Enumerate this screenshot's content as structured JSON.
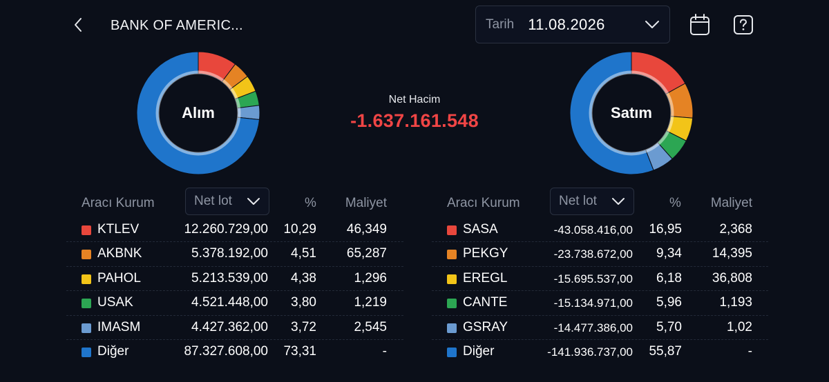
{
  "header": {
    "title": "BANK OF AMERIC...",
    "date_label": "Tarih",
    "date_value": "11.08.2026"
  },
  "colors": {
    "background": "#0b0f19",
    "negative": "#f04545",
    "series": [
      "#e8473c",
      "#e58324",
      "#f2c418",
      "#2ca653",
      "#6b9bd1",
      "#1f75cb"
    ]
  },
  "summary": {
    "buy_label": "Alım",
    "sell_label": "Satım",
    "net_label": "Net Hacim",
    "net_value": "-1.637.161.548"
  },
  "buy_table": {
    "col_broker": "Aracı Kurum",
    "col_select": "Net lot",
    "col_pct": "%",
    "col_cost": "Maliyet",
    "rows": [
      {
        "name": "KTLEV",
        "lot": "12.260.729,00",
        "pct": "10,29",
        "cost": "46,349",
        "color": "#e8473c",
        "share": 10.29
      },
      {
        "name": "AKBNK",
        "lot": "5.378.192,00",
        "pct": "4,51",
        "cost": "65,287",
        "color": "#e58324",
        "share": 4.51
      },
      {
        "name": "PAHOL",
        "lot": "5.213.539,00",
        "pct": "4,38",
        "cost": "1,296",
        "color": "#f2c418",
        "share": 4.38
      },
      {
        "name": "USAK",
        "lot": "4.521.448,00",
        "pct": "3,80",
        "cost": "1,219",
        "color": "#2ca653",
        "share": 3.8
      },
      {
        "name": "IMASM",
        "lot": "4.427.362,00",
        "pct": "3,72",
        "cost": "2,545",
        "color": "#6b9bd1",
        "share": 3.72
      },
      {
        "name": "Diğer",
        "lot": "87.327.608,00",
        "pct": "73,31",
        "cost": "-",
        "color": "#1f75cb",
        "share": 73.31
      }
    ]
  },
  "sell_table": {
    "col_broker": "Aracı Kurum",
    "col_select": "Net lot",
    "col_pct": "%",
    "col_cost": "Maliyet",
    "rows": [
      {
        "name": "SASA",
        "lot": "-43.058.416,00",
        "pct": "16,95",
        "cost": "2,368",
        "color": "#e8473c",
        "share": 16.95
      },
      {
        "name": "PEKGY",
        "lot": "-23.738.672,00",
        "pct": "9,34",
        "cost": "14,395",
        "color": "#e58324",
        "share": 9.34
      },
      {
        "name": "EREGL",
        "lot": "-15.695.537,00",
        "pct": "6,18",
        "cost": "36,808",
        "color": "#f2c418",
        "share": 6.18
      },
      {
        "name": "CANTE",
        "lot": "-15.134.971,00",
        "pct": "5,96",
        "cost": "1,193",
        "color": "#2ca653",
        "share": 5.96
      },
      {
        "name": "GSRAY",
        "lot": "-14.477.386,00",
        "pct": "5,70",
        "cost": "1,02",
        "color": "#6b9bd1",
        "share": 5.7
      },
      {
        "name": "Diğer",
        "lot": "-141.936.737,00",
        "pct": "55,87",
        "cost": "-",
        "color": "#1f75cb",
        "share": 55.87
      }
    ]
  },
  "icons": {
    "back": "chevron-left-icon",
    "dropdown": "chevron-down-icon",
    "calendar": "calendar-icon",
    "help": "help-icon"
  }
}
